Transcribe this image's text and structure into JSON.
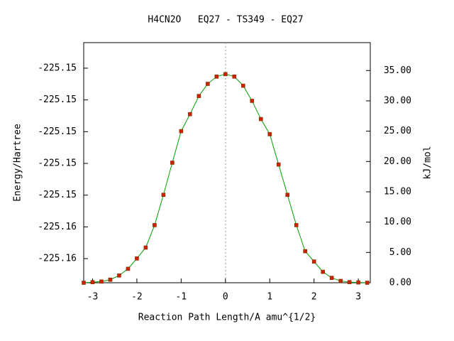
{
  "chart_data": {
    "type": "line",
    "title": "H4CN2O   EQ27 - TS349 - EQ27",
    "x_label": "Reaction Path Length/A amu^{1/2}",
    "y_label": "Energy/Hartree",
    "y2_label": "kJ/mol",
    "xlim": [
      -3.2,
      3.27
    ],
    "xticks": [
      -3,
      -2,
      -1,
      0,
      1,
      2,
      3
    ],
    "ylim": [
      -225.15952,
      -225.14439
    ],
    "yticks": [
      {
        "value": -225.158,
        "label": "-225.16"
      },
      {
        "value": -225.156,
        "label": "-225.16"
      },
      {
        "value": -225.154,
        "label": "-225.15"
      },
      {
        "value": -225.152,
        "label": "-225.15"
      },
      {
        "value": -225.15,
        "label": "-225.15"
      },
      {
        "value": -225.148,
        "label": "-225.15"
      },
      {
        "value": -225.146,
        "label": "-225.15"
      }
    ],
    "y2lim": [
      0,
      39.6
    ],
    "y2ticks": [
      {
        "value": 0,
        "label": "0.00"
      },
      {
        "value": 5,
        "label": "5.00"
      },
      {
        "value": 10,
        "label": "10.00"
      },
      {
        "value": 15,
        "label": "15.00"
      },
      {
        "value": 20,
        "label": "20.00"
      },
      {
        "value": 25,
        "label": "25.00"
      },
      {
        "value": 30,
        "label": "30.00"
      },
      {
        "value": 35,
        "label": "35.00"
      }
    ],
    "x": [
      -3.2,
      -3.0,
      -2.8,
      -2.6,
      -2.4,
      -2.2,
      -2.0,
      -1.8,
      -1.6,
      -1.4,
      -1.2,
      -1.0,
      -0.8,
      -0.6,
      -0.4,
      -0.2,
      0,
      0.2,
      0.4,
      0.6,
      0.8,
      1.0,
      1.2,
      1.4,
      1.6,
      1.8,
      2.0,
      2.2,
      2.4,
      2.6,
      2.8,
      3.0,
      3.2
    ],
    "series": [
      {
        "axis": "y2",
        "color": "#00a000",
        "marker_color": "#cc2200",
        "values": [
          0.0,
          0.1,
          0.2,
          0.5,
          1.2,
          2.3,
          4.0,
          5.8,
          9.5,
          14.5,
          19.8,
          25.0,
          27.8,
          30.8,
          32.8,
          34.0,
          34.4,
          34.0,
          32.5,
          30.0,
          27.0,
          24.5,
          19.5,
          14.5,
          9.5,
          5.2,
          3.5,
          1.8,
          0.8,
          0.3,
          0.1,
          0.05,
          0.0
        ]
      }
    ]
  }
}
